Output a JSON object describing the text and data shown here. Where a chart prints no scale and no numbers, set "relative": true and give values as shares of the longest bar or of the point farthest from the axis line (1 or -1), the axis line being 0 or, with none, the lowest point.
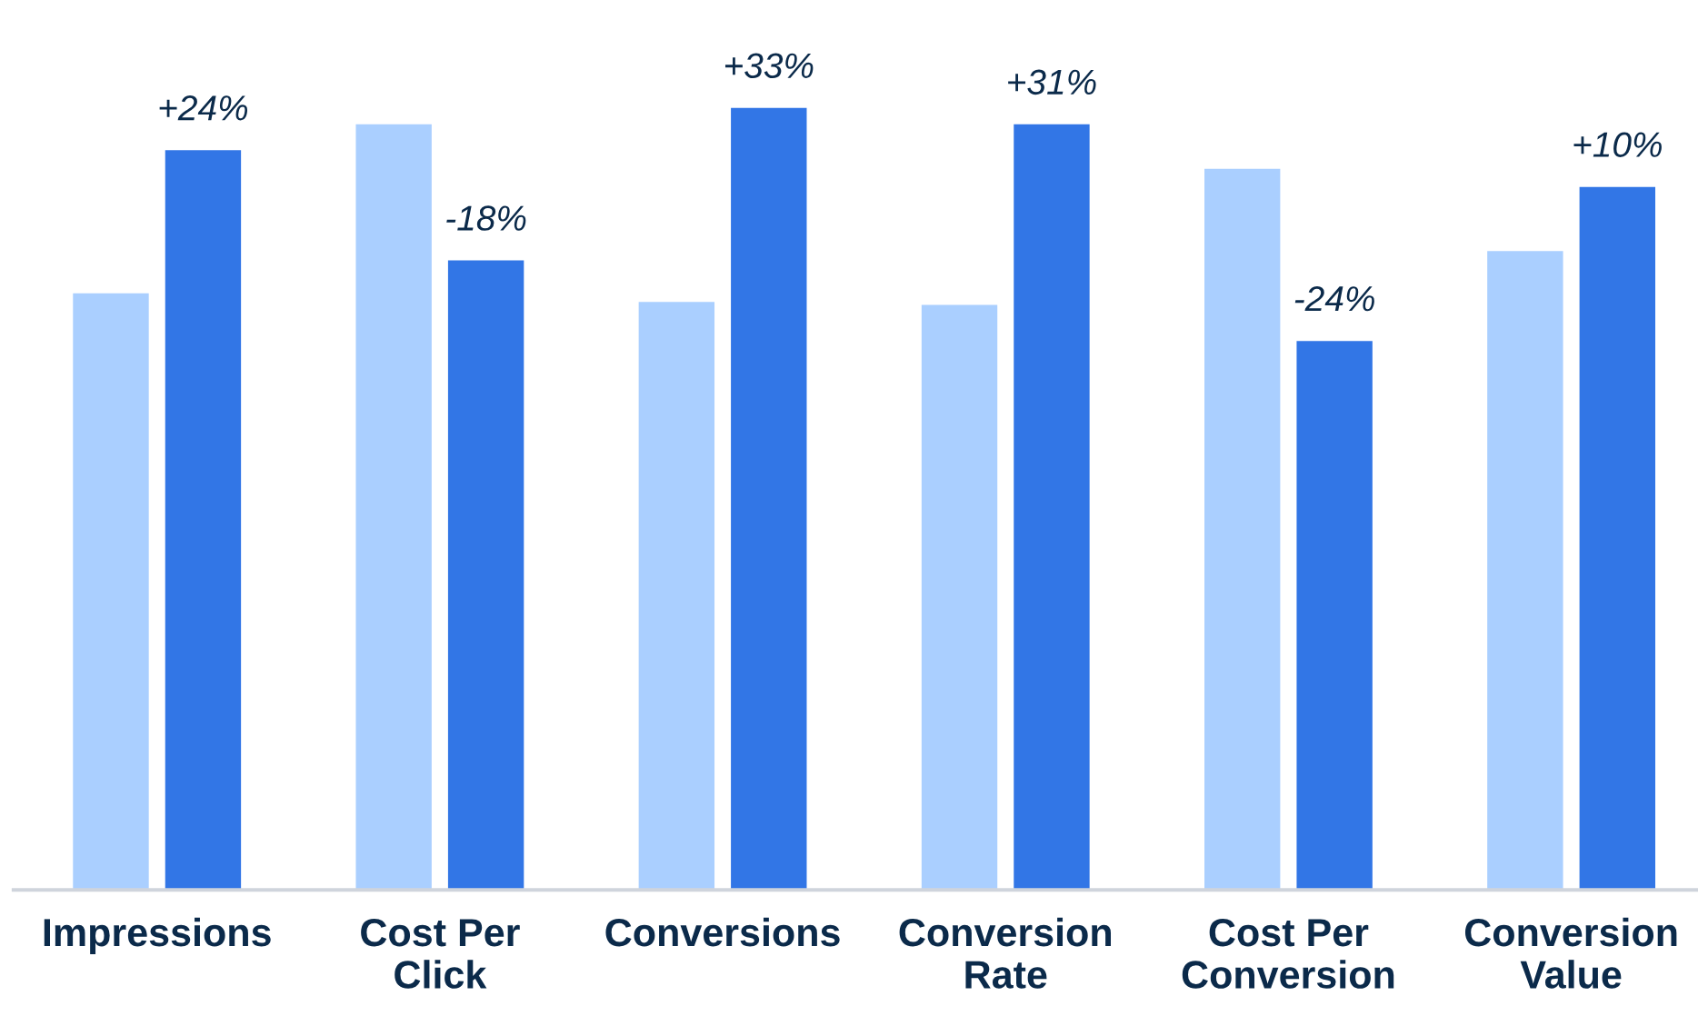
{
  "chart_data": {
    "type": "bar",
    "relative": true,
    "categories": [
      "Impressions",
      "Cost Per\nClick",
      "Conversions",
      "Conversion\nRate",
      "Cost Per\nConversion",
      "Conversion\nValue"
    ],
    "series": [
      {
        "color": "#aacfff",
        "values": [
          0.763,
          0.979,
          0.752,
          0.748,
          0.922,
          0.817
        ]
      },
      {
        "color": "#3276e6",
        "values": [
          0.946,
          0.805,
          1,
          0.979,
          0.702,
          0.899
        ]
      }
    ],
    "annotations": [
      "+24%",
      "-18%",
      "+33%",
      "+31%",
      "-24%",
      "+10%"
    ],
    "grid": false,
    "legend": false
  }
}
